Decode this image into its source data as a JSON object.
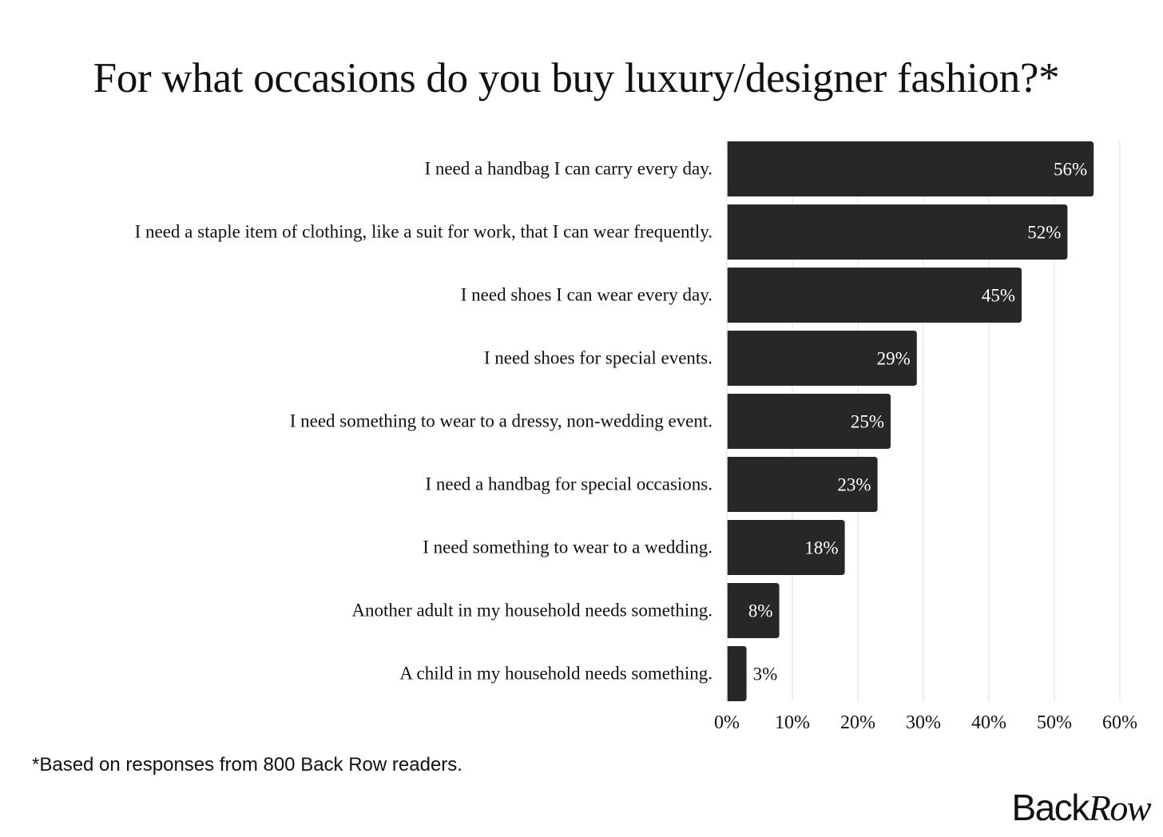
{
  "chart_data": {
    "type": "bar",
    "orientation": "horizontal",
    "title": "For what occasions do you buy luxury/designer fashion?*",
    "categories": [
      "I need a handbag I can carry every day.",
      "I need a staple item of clothing, like a suit for work, that I can wear frequently.",
      "I need shoes I can wear every day.",
      "I need shoes for special events.",
      "I need something to wear to a dressy, non-wedding event.",
      "I need a handbag for special occasions.",
      "I need something to wear to a wedding.",
      "Another adult in my household needs something.",
      "A child in my household needs something."
    ],
    "values": [
      56,
      52,
      45,
      29,
      25,
      23,
      18,
      8,
      3
    ],
    "value_labels": [
      "56%",
      "52%",
      "45%",
      "29%",
      "25%",
      "23%",
      "18%",
      "8%",
      "3%"
    ],
    "xlim": [
      0,
      60
    ],
    "xticks": [
      "0%",
      "10%",
      "20%",
      "30%",
      "40%",
      "50%",
      "60%"
    ],
    "grid": "vertical",
    "bar_color": "#272727",
    "grid_color": "#e8e8e8"
  },
  "footnote": "*Based on responses from 800 Back Row readers.",
  "logo": {
    "part1": "Back",
    "part2": "Row"
  }
}
